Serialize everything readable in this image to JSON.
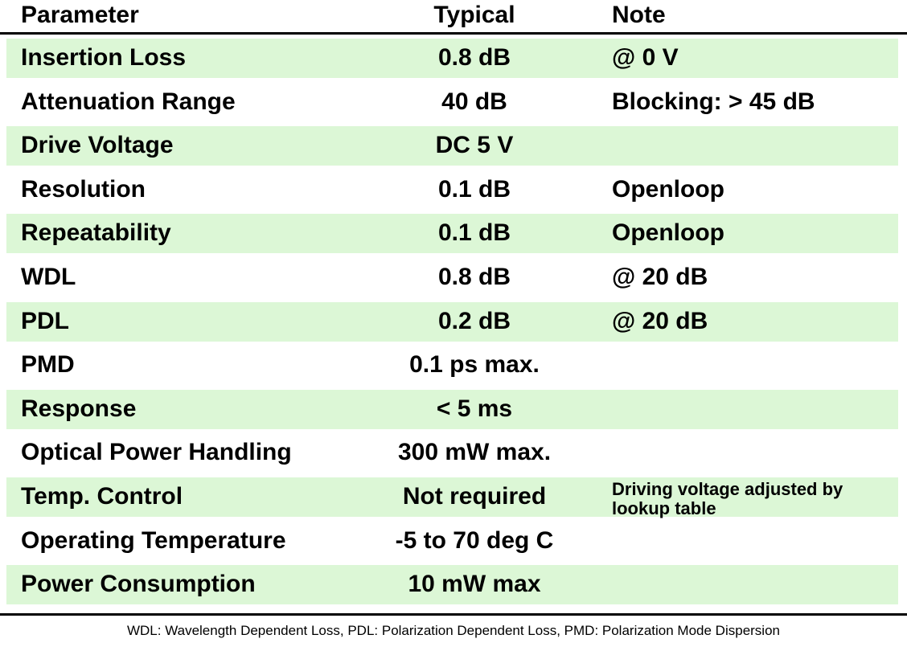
{
  "table": {
    "headers": {
      "parameter": "Parameter",
      "typical": "Typical",
      "note": "Note"
    },
    "rows": [
      {
        "parameter": "Insertion Loss",
        "typical": "0.8 dB",
        "note": "@ 0 V"
      },
      {
        "parameter": "Attenuation Range",
        "typical": "40 dB",
        "note": "Blocking: > 45 dB"
      },
      {
        "parameter": "Drive Voltage",
        "typical": "DC 5 V",
        "note": ""
      },
      {
        "parameter": "Resolution",
        "typical": "0.1 dB",
        "note": "Openloop"
      },
      {
        "parameter": "Repeatability",
        "typical": "0.1 dB",
        "note": "Openloop"
      },
      {
        "parameter": "WDL",
        "typical": "0.8 dB",
        "note": "@ 20 dB"
      },
      {
        "parameter": "PDL",
        "typical": "0.2 dB",
        "note": "@ 20 dB"
      },
      {
        "parameter": "PMD",
        "typical": "0.1 ps max.",
        "note": ""
      },
      {
        "parameter": "Response",
        "typical": "< 5 ms",
        "note": ""
      },
      {
        "parameter": "Optical Power Handling",
        "typical": "300 mW max.",
        "note": ""
      },
      {
        "parameter": "Temp. Control",
        "typical": "Not required",
        "note": "Driving voltage adjusted by lookup table"
      },
      {
        "parameter": "Operating Temperature",
        "typical": "-5 to 70 deg C",
        "note": ""
      },
      {
        "parameter": "Power Consumption",
        "typical": "10 mW max",
        "note": ""
      }
    ],
    "shade_color": "#dcf7d6"
  },
  "footnote": "WDL: Wavelength Dependent Loss, PDL: Polarization Dependent Loss, PMD: Polarization Mode Dispersion"
}
